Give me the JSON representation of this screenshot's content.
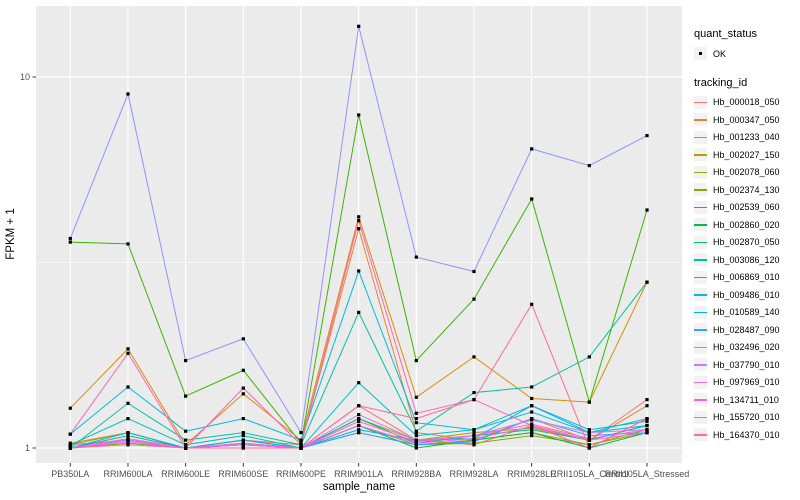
{
  "chart_data": {
    "type": "line",
    "xlabel": "sample_name",
    "ylabel": "FPKM + 1",
    "y_scale": "log10",
    "y_ticks": [
      10,
      1
    ],
    "y_minor_breaks": [
      3.162
    ],
    "ylim_px_note": "log axis, decade spans 371px",
    "panel_bg": "#EBEBEB",
    "grid_color": "#FFFFFF",
    "point_color": "#000000",
    "axis_text_color": "#4D4D4D",
    "categories": [
      "PB350LA",
      "RRIM600LA",
      "RRIM600LE",
      "RRIM600SE",
      "RRIM600PE",
      "RRIM901LA",
      "RRIM928BA",
      "RRIM928LA",
      "RRIM928LE",
      "RRII105LA_Control",
      "RRII105LA_Stressed"
    ],
    "series": [
      {
        "name": "Hb_000018_050",
        "color": "#F8766D",
        "values": [
          1.02,
          1.05,
          1.0,
          1.02,
          1.0,
          1.3,
          1.05,
          1.02,
          1.15,
          1.05,
          1.35
        ]
      },
      {
        "name": "Hb_000347_050",
        "color": "#EA8331",
        "values": [
          1.03,
          1.1,
          1.0,
          1.05,
          1.02,
          3.9,
          1.1,
          1.05,
          1.2,
          1.05,
          1.3
        ]
      },
      {
        "name": "Hb_001233_040",
        "color": "#D89000",
        "values": [
          1.28,
          1.85,
          1.02,
          1.4,
          1.05,
          4.2,
          1.37,
          1.76,
          1.36,
          1.33,
          2.8
        ]
      },
      {
        "name": "Hb_002027_150",
        "color": "#C09B00",
        "values": [
          1.0,
          1.05,
          1.0,
          1.02,
          1.0,
          1.15,
          1.02,
          1.05,
          1.1,
          1.02,
          1.1
        ]
      },
      {
        "name": "Hb_002078_060",
        "color": "#A3A500",
        "values": [
          1.02,
          1.1,
          1.0,
          1.05,
          1.0,
          1.2,
          1.05,
          1.1,
          1.13,
          1.05,
          1.15
        ]
      },
      {
        "name": "Hb_002374_130",
        "color": "#7CAE00",
        "values": [
          1.0,
          1.03,
          1.0,
          1.0,
          1.0,
          1.1,
          1.02,
          1.03,
          1.08,
          1.02,
          1.12
        ]
      },
      {
        "name": "Hb_002539_060",
        "color": "#39B600",
        "values": [
          3.59,
          3.55,
          1.38,
          1.62,
          1.03,
          7.9,
          1.72,
          2.52,
          4.69,
          1.33,
          4.38
        ]
      },
      {
        "name": "Hb_002860_020",
        "color": "#00BB4E",
        "values": [
          1.0,
          1.05,
          1.0,
          1.02,
          1.0,
          1.15,
          1.0,
          1.05,
          1.1,
          1.0,
          1.1
        ]
      },
      {
        "name": "Hb_002870_050",
        "color": "#00BF7D",
        "values": [
          1.0,
          1.08,
          1.0,
          1.03,
          1.0,
          1.2,
          1.03,
          1.08,
          1.12,
          1.05,
          1.15
        ]
      },
      {
        "name": "Hb_003086_120",
        "color": "#00C1A3",
        "values": [
          1.0,
          1.32,
          1.05,
          1.1,
          1.02,
          2.32,
          1.11,
          1.41,
          1.46,
          1.76,
          2.8
        ]
      },
      {
        "name": "Hb_006869_010",
        "color": "#00BFC4",
        "values": [
          1.02,
          1.2,
          1.02,
          1.08,
          1.0,
          1.5,
          1.08,
          1.12,
          1.25,
          1.1,
          1.2
        ]
      },
      {
        "name": "Hb_009486_010",
        "color": "#00BAE0",
        "values": [
          1.09,
          1.46,
          1.11,
          1.2,
          1.05,
          3.0,
          1.17,
          1.12,
          1.3,
          1.12,
          1.18
        ]
      },
      {
        "name": "Hb_010589_140",
        "color": "#00B0F6",
        "values": [
          1.0,
          1.1,
          1.0,
          1.05,
          1.0,
          1.12,
          1.05,
          1.06,
          1.3,
          1.1,
          1.15
        ]
      },
      {
        "name": "Hb_028487_090",
        "color": "#35A2FF",
        "values": [
          1.0,
          1.05,
          1.0,
          1.02,
          1.0,
          1.1,
          1.02,
          1.04,
          1.2,
          1.08,
          1.1
        ]
      },
      {
        "name": "Hb_032496_020",
        "color": "#9590FF",
        "values": [
          3.67,
          9.0,
          1.72,
          1.97,
          1.1,
          13.7,
          3.27,
          2.99,
          6.4,
          5.77,
          6.95
        ]
      },
      {
        "name": "Hb_037790_010",
        "color": "#C77CFF",
        "values": [
          1.0,
          1.05,
          1.0,
          1.02,
          1.0,
          1.23,
          1.05,
          1.08,
          1.19,
          1.1,
          1.12
        ]
      },
      {
        "name": "Hb_097969_010",
        "color": "#E76BF3",
        "values": [
          1.0,
          1.04,
          1.0,
          1.02,
          1.0,
          1.15,
          1.03,
          1.06,
          1.14,
          1.05,
          1.1
        ]
      },
      {
        "name": "Hb_134711_010",
        "color": "#FA62DB",
        "values": [
          1.0,
          1.06,
          1.0,
          1.03,
          1.0,
          1.18,
          1.04,
          1.08,
          1.16,
          1.06,
          1.12
        ]
      },
      {
        "name": "Hb_155720_010",
        "color": "#FF62BC",
        "values": [
          1.09,
          1.8,
          1.0,
          1.45,
          1.02,
          4.1,
          1.24,
          1.35,
          1.15,
          1.0,
          1.2
        ]
      },
      {
        "name": "Hb_164370_010",
        "color": "#FF6A98",
        "values": [
          1.0,
          1.02,
          1.0,
          1.0,
          1.0,
          1.3,
          1.2,
          1.35,
          2.44,
          1.0,
          1.2
        ]
      }
    ],
    "legend": {
      "quant_status_title": "quant_status",
      "ok_label": "OK",
      "tracking_id_title": "tracking_id",
      "legend_position": "right"
    }
  },
  "axes": {
    "x_title": "sample_name",
    "y_title": "FPKM + 1"
  }
}
